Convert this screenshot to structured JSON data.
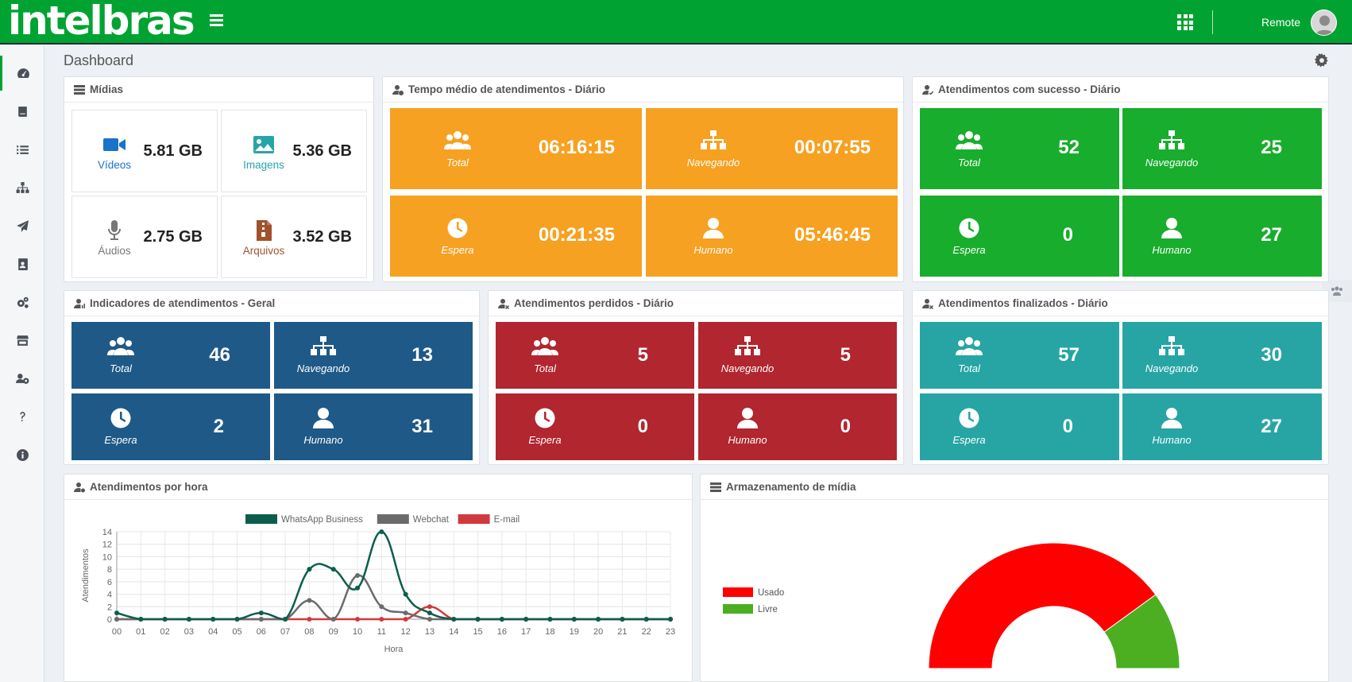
{
  "app": {
    "logo": "intelbras",
    "user": "Remote"
  },
  "header": {
    "title": "Dashboard"
  },
  "media": {
    "title": "Mídias",
    "items": [
      {
        "label": "Vídeos",
        "value": "5.81 GB",
        "color": "#1a73c8",
        "icon": "video-icon"
      },
      {
        "label": "Imagens",
        "value": "5.36 GB",
        "color": "#27a5a5",
        "icon": "image-icon"
      },
      {
        "label": "Áudios",
        "value": "2.75 GB",
        "color": "#777777",
        "icon": "microphone-icon"
      },
      {
        "label": "Arquivos",
        "value": "3.52 GB",
        "color": "#a0522d",
        "icon": "file-archive-icon"
      }
    ]
  },
  "tempo": {
    "title": "Tempo médio de atendimentos - Diário",
    "items": [
      {
        "label": "Total",
        "value": "06:16:15",
        "icon": "users-icon"
      },
      {
        "label": "Navegando",
        "value": "00:07:55",
        "icon": "sitemap-icon"
      },
      {
        "label": "Espera",
        "value": "00:21:35",
        "icon": "clock-icon"
      },
      {
        "label": "Humano",
        "value": "05:46:45",
        "icon": "user-icon"
      }
    ]
  },
  "sucesso": {
    "title": "Atendimentos com sucesso - Diário",
    "items": [
      {
        "label": "Total",
        "value": "52"
      },
      {
        "label": "Navegando",
        "value": "25"
      },
      {
        "label": "Espera",
        "value": "0"
      },
      {
        "label": "Humano",
        "value": "27"
      }
    ]
  },
  "indicadores": {
    "title": "Indicadores de atendimentos - Geral",
    "items": [
      {
        "label": "Total",
        "value": "46"
      },
      {
        "label": "Navegando",
        "value": "13"
      },
      {
        "label": "Espera",
        "value": "2"
      },
      {
        "label": "Humano",
        "value": "31"
      }
    ]
  },
  "perdidos": {
    "title": "Atendimentos perdidos - Diário",
    "items": [
      {
        "label": "Total",
        "value": "5"
      },
      {
        "label": "Navegando",
        "value": "5"
      },
      {
        "label": "Espera",
        "value": "0"
      },
      {
        "label": "Humano",
        "value": "0"
      }
    ]
  },
  "finalizados": {
    "title": "Atendimentos finalizados - Diário",
    "items": [
      {
        "label": "Total",
        "value": "57"
      },
      {
        "label": "Navegando",
        "value": "30"
      },
      {
        "label": "Espera",
        "value": "0"
      },
      {
        "label": "Humano",
        "value": "27"
      }
    ]
  },
  "hourly": {
    "title": "Atendimentos por hora"
  },
  "storage": {
    "title": "Armazenamento de mídia"
  },
  "sidebar": {
    "items": [
      "dashboard-icon",
      "book-icon",
      "list-icon",
      "sitemap-icon",
      "paper-plane-icon",
      "contact-book-icon",
      "cogs-icon",
      "store-icon",
      "users-cog-icon",
      "question-icon",
      "info-icon"
    ]
  },
  "chart_data": [
    {
      "type": "line",
      "xlabel": "Hora",
      "ylabel": "Atendimentos",
      "ylim": [
        0,
        14
      ],
      "yticks": [
        0,
        2,
        4,
        6,
        8,
        10,
        12,
        14
      ],
      "x": [
        "00",
        "01",
        "02",
        "03",
        "04",
        "05",
        "06",
        "07",
        "08",
        "09",
        "10",
        "11",
        "12",
        "13",
        "14",
        "15",
        "16",
        "17",
        "18",
        "19",
        "20",
        "21",
        "22",
        "23"
      ],
      "legend_position": "top",
      "grid": true,
      "series": [
        {
          "name": "WhatsApp Business",
          "color": "#0c5e4c",
          "values": [
            1,
            0,
            0,
            0,
            0,
            0,
            1,
            0,
            8,
            8,
            5,
            14,
            4,
            1,
            0,
            0,
            0,
            0,
            0,
            0,
            0,
            0,
            0,
            0
          ]
        },
        {
          "name": "Webchat",
          "color": "#6b6b6b",
          "values": [
            0,
            0,
            0,
            0,
            0,
            0,
            0,
            0,
            3,
            0,
            7,
            2,
            1,
            0,
            0,
            0,
            0,
            0,
            0,
            0,
            0,
            0,
            0,
            0
          ]
        },
        {
          "name": "E-mail",
          "color": "#d03a3f",
          "values": [
            0,
            0,
            0,
            0,
            0,
            0,
            0,
            0,
            0,
            0,
            0,
            0,
            0,
            2,
            0,
            0,
            0,
            0,
            0,
            0,
            0,
            0,
            0,
            0
          ]
        }
      ]
    },
    {
      "type": "pie",
      "variant": "half-doughnut",
      "legend_position": "left",
      "categories": [
        "Usado",
        "Livre"
      ],
      "values": [
        80,
        20
      ],
      "colors": [
        "#ff0000",
        "#4caf22"
      ]
    }
  ]
}
